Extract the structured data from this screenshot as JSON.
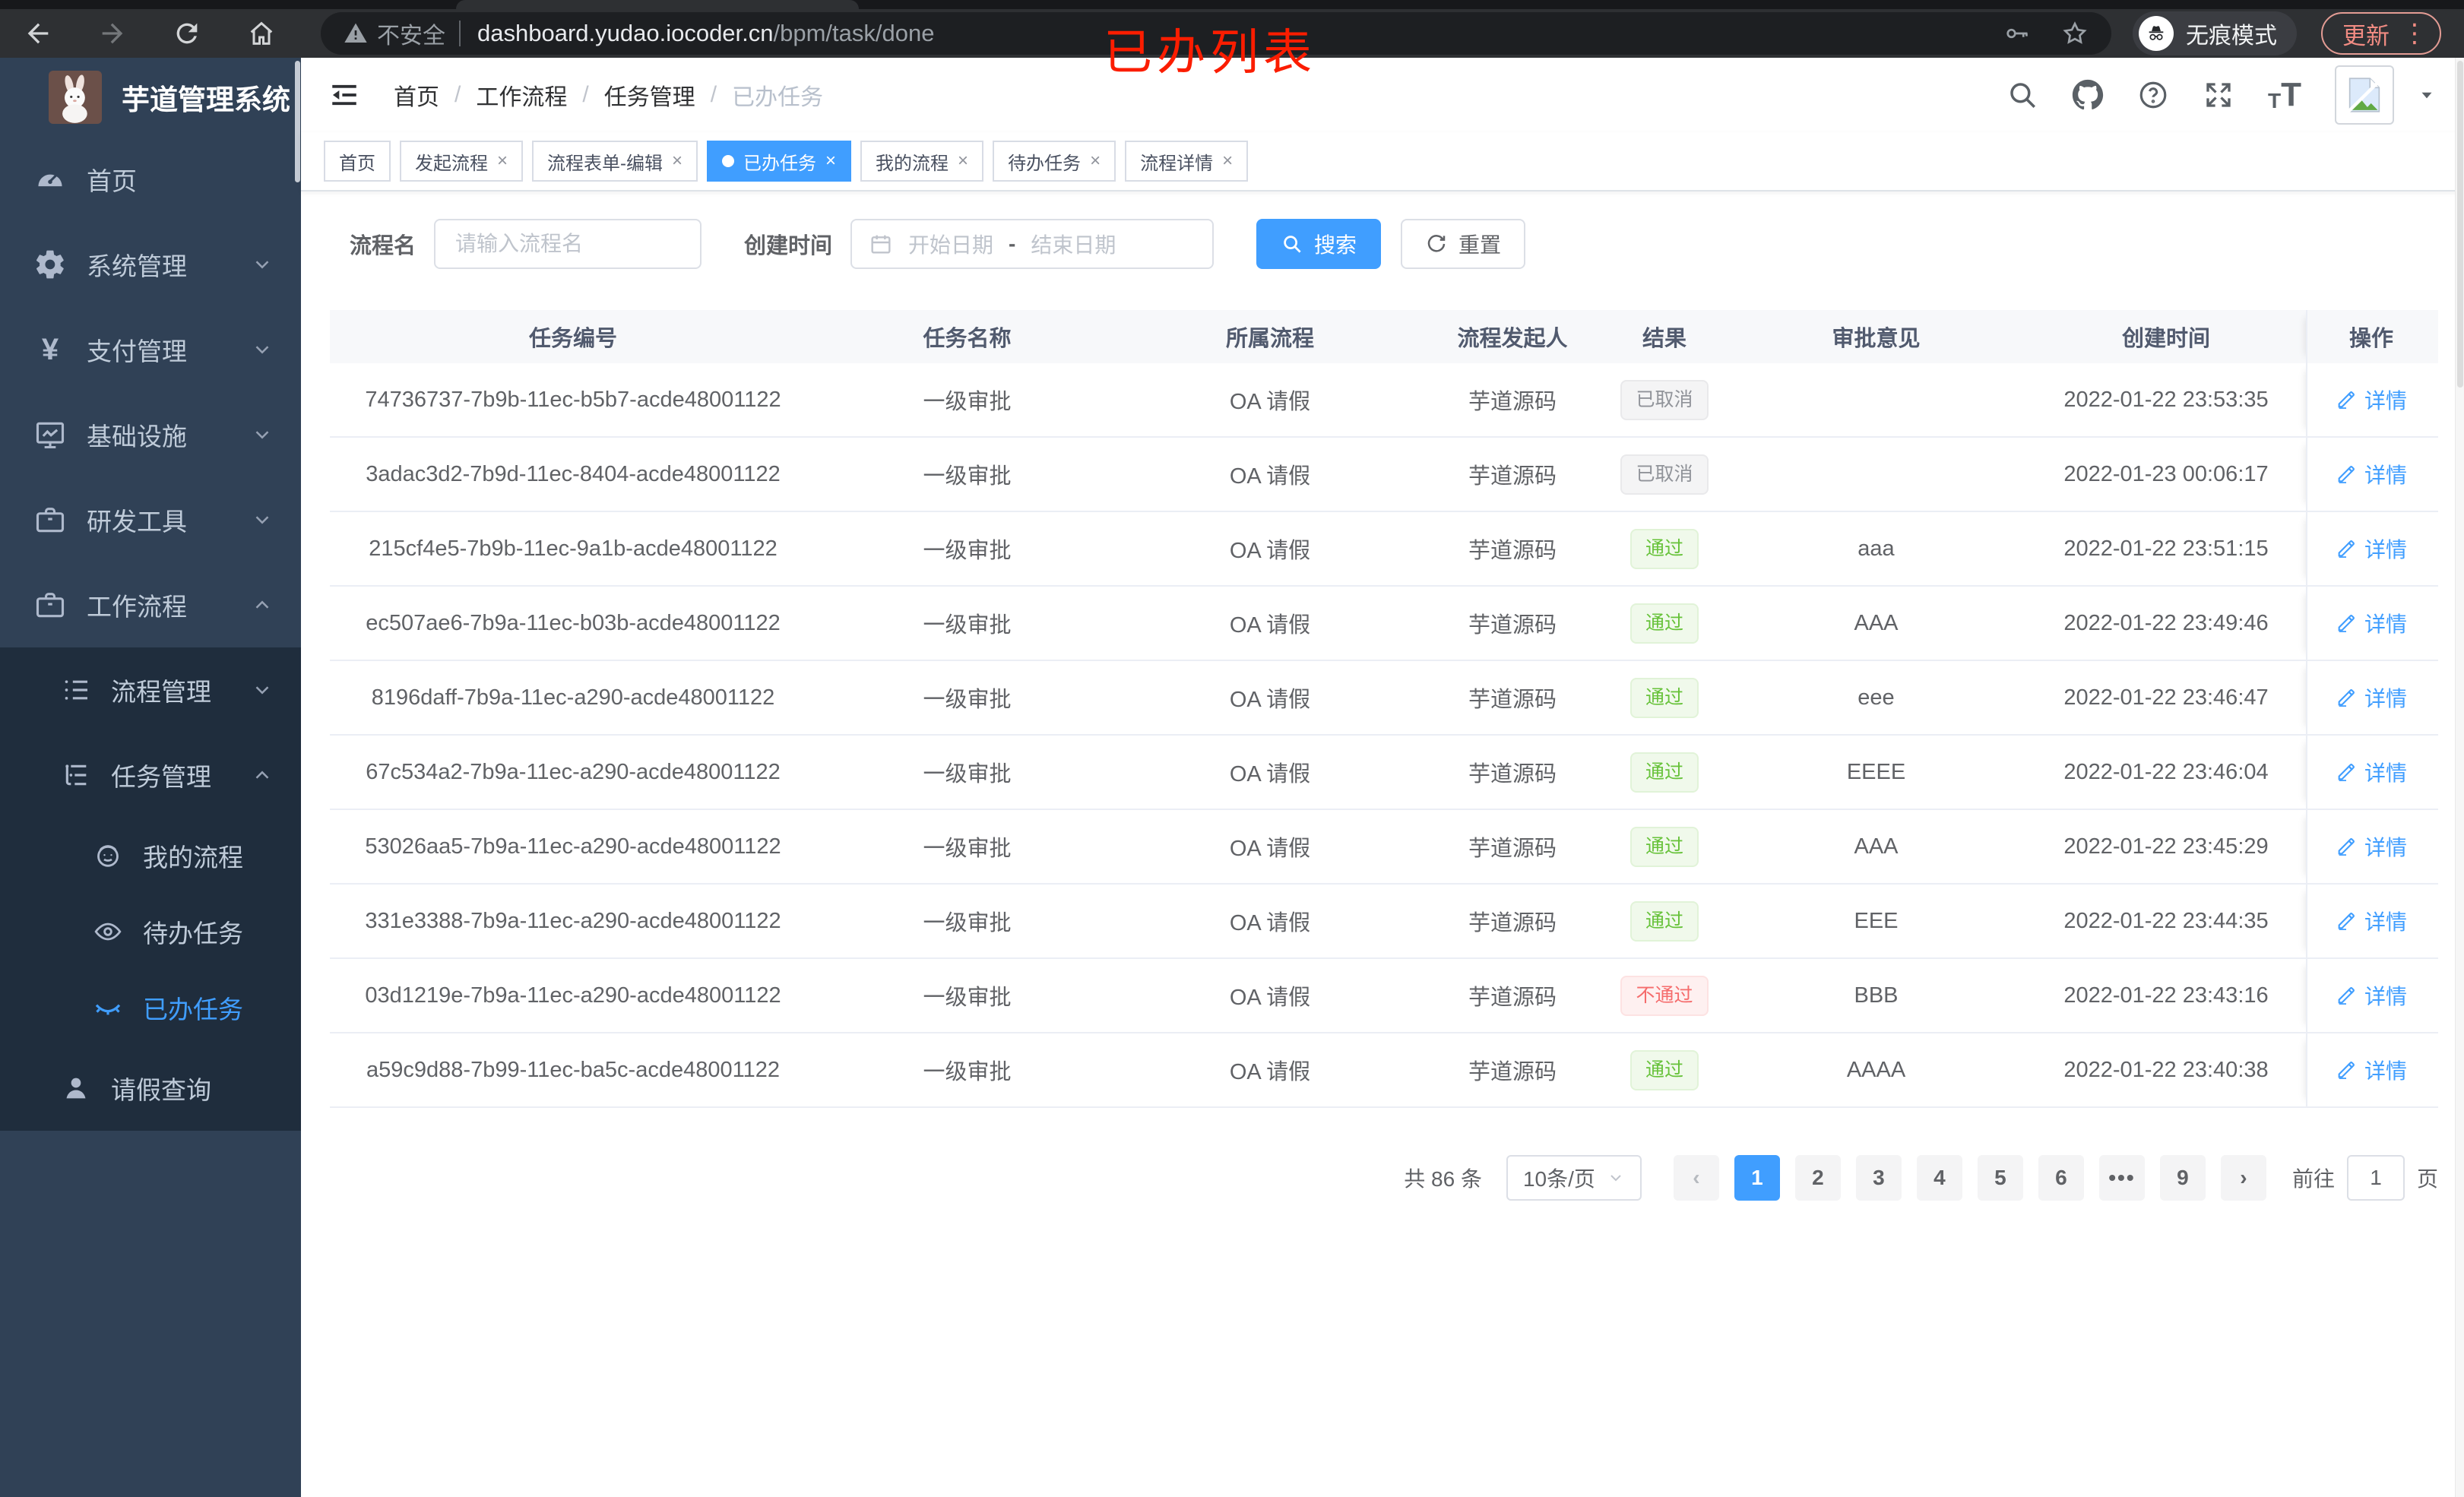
{
  "browser": {
    "security_label": "不安全",
    "url_host": "dashboard.yudao.iocoder.cn",
    "url_path": "/bpm/task/done",
    "incognito_label": "无痕模式",
    "update_label": "更新"
  },
  "annotation": {
    "text": "已办列表",
    "color": "#fb1d00"
  },
  "sidebar": {
    "title": "芋道管理系统",
    "menu": [
      {
        "label": "首页",
        "icon": "dashboard-icon",
        "level": 1
      },
      {
        "label": "系统管理",
        "icon": "gear-icon",
        "level": 1,
        "chevron": "down"
      },
      {
        "label": "支付管理",
        "icon": "yen-icon",
        "level": 1,
        "chevron": "down"
      },
      {
        "label": "基础设施",
        "icon": "monitor-icon",
        "level": 1,
        "chevron": "down"
      },
      {
        "label": "研发工具",
        "icon": "briefcase-icon",
        "level": 1,
        "chevron": "down"
      },
      {
        "label": "工作流程",
        "icon": "briefcase-icon",
        "level": 1,
        "chevron": "up"
      },
      {
        "label": "流程管理",
        "icon": "list-icon",
        "level": 2,
        "chevron": "down",
        "dark": true
      },
      {
        "label": "任务管理",
        "icon": "tree-icon",
        "level": 2,
        "chevron": "up",
        "dark": true
      },
      {
        "label": "我的流程",
        "icon": "robot-icon",
        "level": 3,
        "dark": true
      },
      {
        "label": "待办任务",
        "icon": "eye-icon",
        "level": 3,
        "dark": true
      },
      {
        "label": "已办任务",
        "icon": "eye-closed-icon",
        "level": 3,
        "dark": true,
        "active": true
      },
      {
        "label": "请假查询",
        "icon": "user-icon",
        "level": 2,
        "dark": true
      }
    ]
  },
  "header": {
    "breadcrumb": [
      "首页",
      "工作流程",
      "任务管理",
      "已办任务"
    ]
  },
  "tabs": [
    {
      "label": "首页",
      "closable": false,
      "active": false
    },
    {
      "label": "发起流程",
      "closable": true,
      "active": false
    },
    {
      "label": "流程表单-编辑",
      "closable": true,
      "active": false
    },
    {
      "label": "已办任务",
      "closable": true,
      "active": true
    },
    {
      "label": "我的流程",
      "closable": true,
      "active": false
    },
    {
      "label": "待办任务",
      "closable": true,
      "active": false
    },
    {
      "label": "流程详情",
      "closable": true,
      "active": false
    }
  ],
  "filters": {
    "name_label": "流程名",
    "name_placeholder": "请输入流程名",
    "time_label": "创建时间",
    "start_placeholder": "开始日期",
    "range_separator": "-",
    "end_placeholder": "结束日期",
    "search_label": "搜索",
    "reset_label": "重置"
  },
  "table": {
    "headers": [
      "任务编号",
      "任务名称",
      "所属流程",
      "流程发起人",
      "结果",
      "审批意见",
      "创建时间",
      "操作"
    ],
    "detail_label": "详情",
    "rows": [
      {
        "id": "74736737-7b9b-11ec-b5b7-acde48001122",
        "name": "一级审批",
        "process": "OA 请假",
        "starter": "芋道源码",
        "result": "已取消",
        "result_type": "info",
        "comment": "",
        "time": "2022-01-22 23:53:35"
      },
      {
        "id": "3adac3d2-7b9d-11ec-8404-acde48001122",
        "name": "一级审批",
        "process": "OA 请假",
        "starter": "芋道源码",
        "result": "已取消",
        "result_type": "info",
        "comment": "",
        "time": "2022-01-23 00:06:17"
      },
      {
        "id": "215cf4e5-7b9b-11ec-9a1b-acde48001122",
        "name": "一级审批",
        "process": "OA 请假",
        "starter": "芋道源码",
        "result": "通过",
        "result_type": "success",
        "comment": "aaa",
        "time": "2022-01-22 23:51:15"
      },
      {
        "id": "ec507ae6-7b9a-11ec-b03b-acde48001122",
        "name": "一级审批",
        "process": "OA 请假",
        "starter": "芋道源码",
        "result": "通过",
        "result_type": "success",
        "comment": "AAA",
        "time": "2022-01-22 23:49:46"
      },
      {
        "id": "8196daff-7b9a-11ec-a290-acde48001122",
        "name": "一级审批",
        "process": "OA 请假",
        "starter": "芋道源码",
        "result": "通过",
        "result_type": "success",
        "comment": "eee",
        "time": "2022-01-22 23:46:47"
      },
      {
        "id": "67c534a2-7b9a-11ec-a290-acde48001122",
        "name": "一级审批",
        "process": "OA 请假",
        "starter": "芋道源码",
        "result": "通过",
        "result_type": "success",
        "comment": "EEEE",
        "time": "2022-01-22 23:46:04"
      },
      {
        "id": "53026aa5-7b9a-11ec-a290-acde48001122",
        "name": "一级审批",
        "process": "OA 请假",
        "starter": "芋道源码",
        "result": "通过",
        "result_type": "success",
        "comment": "AAA",
        "time": "2022-01-22 23:45:29"
      },
      {
        "id": "331e3388-7b9a-11ec-a290-acde48001122",
        "name": "一级审批",
        "process": "OA 请假",
        "starter": "芋道源码",
        "result": "通过",
        "result_type": "success",
        "comment": "EEE",
        "time": "2022-01-22 23:44:35"
      },
      {
        "id": "03d1219e-7b9a-11ec-a290-acde48001122",
        "name": "一级审批",
        "process": "OA 请假",
        "starter": "芋道源码",
        "result": "不通过",
        "result_type": "danger",
        "comment": "BBB",
        "time": "2022-01-22 23:43:16"
      },
      {
        "id": "a59c9d88-7b99-11ec-ba5c-acde48001122",
        "name": "一级审批",
        "process": "OA 请假",
        "starter": "芋道源码",
        "result": "通过",
        "result_type": "success",
        "comment": "AAAA",
        "time": "2022-01-22 23:40:38"
      }
    ]
  },
  "pagination": {
    "total_label": "共 86 条",
    "page_size": "10条/页",
    "pages": [
      "1",
      "2",
      "3",
      "4",
      "5",
      "6",
      "•••",
      "9"
    ],
    "current": "1",
    "goto_label": "前往",
    "goto_value": "1",
    "unit_label": "页"
  }
}
